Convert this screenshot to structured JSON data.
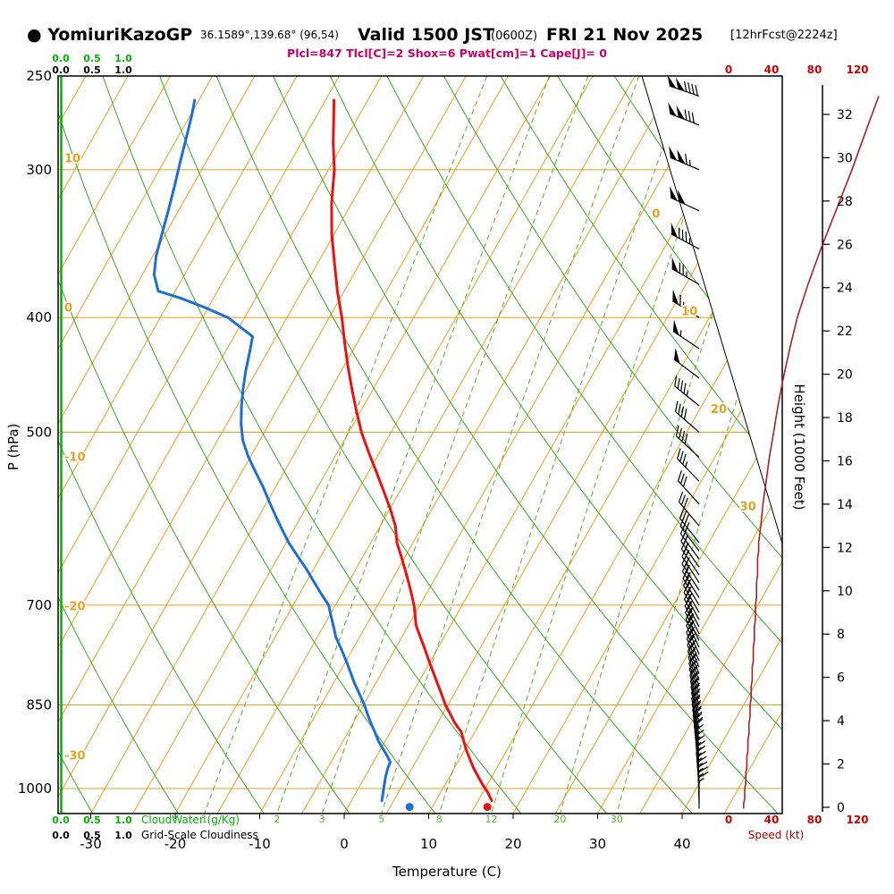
{
  "header": {
    "station_label": "● YomiuriKazoGP",
    "coords": "36.1589°,139.68° (96,54)",
    "valid_main": "Valid 1500 JST",
    "valid_z": "(0600Z)",
    "valid_date": "FRI 21 Nov 2025",
    "forecast_ref": "[12hrFcst@2224z]",
    "params": "Plcl=847 Tlcl[C]=2 Shox=6 Pwat[cm]=1 Cape[J]= 0"
  },
  "axes": {
    "pressure_label": "P (hPa)",
    "pressure_ticks": [
      250,
      300,
      400,
      500,
      700,
      850,
      1000
    ],
    "temp_label": "Temperature (C)",
    "temp_ticks": [
      -30,
      -20,
      -10,
      0,
      10,
      20,
      30,
      40
    ],
    "height_label": "Height (1000 Feet)",
    "height_ticks": [
      0,
      2,
      4,
      6,
      8,
      10,
      12,
      14,
      16,
      18,
      20,
      22,
      24,
      26,
      28,
      30,
      32
    ],
    "speed_label": "Speed (kt)",
    "speed_ticks": [
      0,
      40,
      80,
      120
    ],
    "cloudwater_label": "CloudWater (g/Kg)",
    "cloudwater_scale": [
      "0.0",
      "0.5",
      "1.0"
    ],
    "cloudiness_label": "Grid-Scale Cloudiness",
    "cloudiness_scale": [
      "0.0",
      "0.5",
      "1.0"
    ],
    "isotherm_left_labels": [
      10,
      0,
      -10,
      -20,
      -30
    ],
    "isotherm_diag_labels": [
      0,
      10,
      20,
      30
    ],
    "mixing_ratio_labels": [
      1,
      2,
      3,
      5,
      8,
      12,
      20,
      30
    ]
  },
  "colors": {
    "grid_orange": "#E8A01E",
    "adiabat_green": "#33AA22",
    "mixing_green": "#55B12A",
    "cloud_green": "#00B400",
    "temperature_red": "#EE1111",
    "dewpoint_blue": "#1D6FD2",
    "speed_dark_red": "#AA2222",
    "params_magenta": "#CC0066",
    "barb_black": "#000000"
  },
  "chart_data": {
    "type": "line",
    "subtype": "skew-t log-p sounding (emagram)",
    "title": "Valid 1500 JST (0600Z) FRI 21 Nov 2025",
    "pressure_axis": {
      "label": "P (hPa)",
      "scale": "log",
      "range": [
        250,
        1050
      ],
      "ticks": [
        250,
        300,
        400,
        500,
        700,
        850,
        1000
      ]
    },
    "temp_axis": {
      "label": "Temperature (C)",
      "unit": "C",
      "ticks": [
        -30,
        -20,
        -10,
        0,
        10,
        20,
        30,
        40
      ]
    },
    "height_axis": {
      "label": "Height (1000 Feet)",
      "ticks": [
        0,
        2,
        4,
        6,
        8,
        10,
        12,
        14,
        16,
        18,
        20,
        22,
        24,
        26,
        28,
        30,
        32
      ]
    },
    "speed_axis": {
      "label": "Speed (kt)",
      "ticks": [
        0,
        40,
        80,
        120
      ]
    },
    "dry_adiabats_theta_k": {
      "from": 240,
      "to": 390,
      "step": 10
    },
    "isotherm_step_c": 5,
    "mixing_ratio_lines_gkg": [
      1,
      2,
      3,
      5,
      8,
      12,
      20,
      30
    ],
    "surface_obs": {
      "pressure": 1024,
      "temperature": 16.5,
      "dewpoint": 7.3
    },
    "temperature": [
      [
        1024,
        16.6
      ],
      [
        1008,
        15.6
      ],
      [
        992,
        14.4
      ],
      [
        976,
        13.3
      ],
      [
        960,
        12.2
      ],
      [
        944,
        11.2
      ],
      [
        928,
        10.2
      ],
      [
        912,
        9.3
      ],
      [
        896,
        8.4
      ],
      [
        880,
        7.0
      ],
      [
        864,
        5.8
      ],
      [
        850,
        4.7
      ],
      [
        832,
        3.5
      ],
      [
        815,
        2.3
      ],
      [
        798,
        1.1
      ],
      [
        780,
        -0.2
      ],
      [
        762,
        -1.5
      ],
      [
        745,
        -2.8
      ],
      [
        728,
        -4.1
      ],
      [
        712,
        -5.0
      ],
      [
        700,
        -5.7
      ],
      [
        680,
        -7.1
      ],
      [
        660,
        -8.6
      ],
      [
        640,
        -10.2
      ],
      [
        620,
        -11.9
      ],
      [
        600,
        -13.2
      ],
      [
        580,
        -15.0
      ],
      [
        560,
        -17.0
      ],
      [
        540,
        -19.1
      ],
      [
        520,
        -21.3
      ],
      [
        500,
        -23.5
      ],
      [
        480,
        -25.5
      ],
      [
        460,
        -27.5
      ],
      [
        440,
        -29.5
      ],
      [
        420,
        -31.5
      ],
      [
        400,
        -33.5
      ],
      [
        380,
        -35.8
      ],
      [
        360,
        -38.0
      ],
      [
        340,
        -40.3
      ],
      [
        320,
        -42.4
      ],
      [
        300,
        -44.3
      ],
      [
        285,
        -46.2
      ],
      [
        270,
        -48.0
      ],
      [
        262,
        -49.0
      ]
    ],
    "dewpoint": [
      [
        1024,
        3.6
      ],
      [
        1008,
        3.2
      ],
      [
        992,
        2.8
      ],
      [
        976,
        2.4
      ],
      [
        960,
        2.1
      ],
      [
        950,
        2.0
      ],
      [
        938,
        1.2
      ],
      [
        925,
        0.2
      ],
      [
        912,
        -0.8
      ],
      [
        898,
        -1.7
      ],
      [
        885,
        -2.6
      ],
      [
        870,
        -3.6
      ],
      [
        850,
        -4.9
      ],
      [
        832,
        -6.2
      ],
      [
        815,
        -7.5
      ],
      [
        798,
        -8.7
      ],
      [
        780,
        -10.0
      ],
      [
        762,
        -11.4
      ],
      [
        745,
        -12.8
      ],
      [
        728,
        -13.9
      ],
      [
        712,
        -15.0
      ],
      [
        700,
        -15.8
      ],
      [
        685,
        -17.4
      ],
      [
        668,
        -19.2
      ],
      [
        652,
        -20.9
      ],
      [
        636,
        -22.8
      ],
      [
        620,
        -24.7
      ],
      [
        604,
        -26.4
      ],
      [
        588,
        -28.1
      ],
      [
        572,
        -29.8
      ],
      [
        556,
        -31.5
      ],
      [
        540,
        -33.4
      ],
      [
        524,
        -35.3
      ],
      [
        508,
        -37.0
      ],
      [
        492,
        -38.3
      ],
      [
        476,
        -39.4
      ],
      [
        460,
        -40.4
      ],
      [
        444,
        -41.3
      ],
      [
        428,
        -42.1
      ],
      [
        415,
        -42.8
      ],
      [
        400,
        -47.0
      ],
      [
        392,
        -50.5
      ],
      [
        385,
        -54.0
      ],
      [
        380,
        -57.0
      ],
      [
        368,
        -58.6
      ],
      [
        355,
        -59.6
      ],
      [
        340,
        -60.4
      ],
      [
        325,
        -61.2
      ],
      [
        310,
        -62.1
      ],
      [
        295,
        -63.1
      ],
      [
        280,
        -64.1
      ],
      [
        270,
        -64.8
      ],
      [
        262,
        -65.5
      ]
    ],
    "wind": [
      [
        1040,
        360,
        14
      ],
      [
        1030,
        359,
        14
      ],
      [
        1020,
        358,
        15
      ],
      [
        1010,
        357,
        15
      ],
      [
        1000,
        356,
        15
      ],
      [
        990,
        355,
        16
      ],
      [
        980,
        355,
        16
      ],
      [
        970,
        354,
        16
      ],
      [
        960,
        353,
        17
      ],
      [
        950,
        352,
        17
      ],
      [
        940,
        351,
        17
      ],
      [
        930,
        350,
        18
      ],
      [
        920,
        349,
        18
      ],
      [
        910,
        348,
        18
      ],
      [
        900,
        347,
        19
      ],
      [
        890,
        346,
        19
      ],
      [
        880,
        346,
        19
      ],
      [
        870,
        345,
        20
      ],
      [
        860,
        344,
        20
      ],
      [
        850,
        343,
        20
      ],
      [
        840,
        342,
        21
      ],
      [
        830,
        341,
        21
      ],
      [
        820,
        340,
        21
      ],
      [
        810,
        339,
        22
      ],
      [
        800,
        338,
        22
      ],
      [
        790,
        337,
        22
      ],
      [
        780,
        336,
        23
      ],
      [
        770,
        336,
        23
      ],
      [
        760,
        335,
        23
      ],
      [
        750,
        334,
        24
      ],
      [
        740,
        333,
        24
      ],
      [
        730,
        332,
        24
      ],
      [
        720,
        331,
        25
      ],
      [
        710,
        330,
        25
      ],
      [
        700,
        329,
        25
      ],
      [
        690,
        328,
        26
      ],
      [
        680,
        327,
        26
      ],
      [
        670,
        327,
        26
      ],
      [
        660,
        326,
        27
      ],
      [
        650,
        325,
        27
      ],
      [
        640,
        324,
        27
      ],
      [
        630,
        323,
        28
      ],
      [
        620,
        322,
        28
      ],
      [
        600,
        320,
        30
      ],
      [
        575,
        318,
        32
      ],
      [
        550,
        316,
        35
      ],
      [
        525,
        313,
        38
      ],
      [
        500,
        311,
        42
      ],
      [
        475,
        309,
        46
      ],
      [
        450,
        307,
        51
      ],
      [
        425,
        304,
        57
      ],
      [
        400,
        302,
        64
      ],
      [
        375,
        300,
        74
      ],
      [
        350,
        298,
        86
      ],
      [
        325,
        295,
        100
      ],
      [
        300,
        293,
        115
      ],
      [
        275,
        291,
        130
      ],
      [
        260,
        289,
        140
      ]
    ]
  }
}
